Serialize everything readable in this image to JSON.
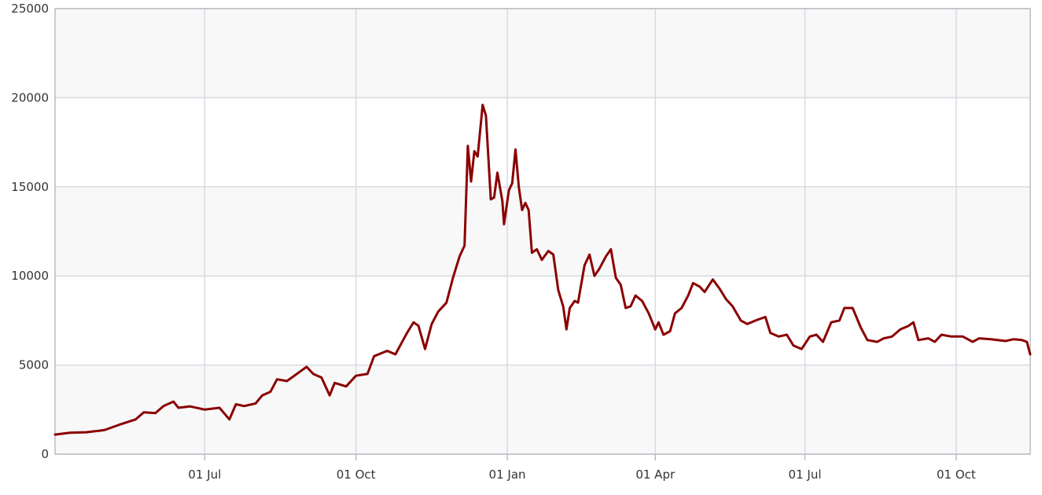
{
  "chart_data": {
    "type": "line",
    "title": "",
    "xlabel": "",
    "ylabel": "",
    "x_axis_type": "datetime",
    "x_range": [
      "2017-04-01",
      "2018-11-15"
    ],
    "ylim": [
      0,
      25000
    ],
    "grid": true,
    "legend": "none",
    "y_ticks": [
      0,
      5000,
      10000,
      15000,
      20000,
      25000
    ],
    "x_ticks": [
      {
        "date": "2017-07-01",
        "label": "01 Jul"
      },
      {
        "date": "2017-10-01",
        "label": "01 Oct"
      },
      {
        "date": "2018-01-01",
        "label": "01 Jan"
      },
      {
        "date": "2018-04-01",
        "label": "01 Apr"
      },
      {
        "date": "2018-07-01",
        "label": "01 Jul"
      },
      {
        "date": "2018-10-01",
        "label": "01 Oct"
      }
    ],
    "colors": {
      "line": "#8b0000",
      "band_light": "#ffffff",
      "band_dark": "#f8f8f9",
      "grid": "#d7dbe0",
      "axis": "#b8bdc4"
    },
    "series": [
      {
        "points": [
          [
            "2017-04-01",
            1100
          ],
          [
            "2017-04-10",
            1200
          ],
          [
            "2017-04-20",
            1230
          ],
          [
            "2017-05-01",
            1350
          ],
          [
            "2017-05-10",
            1650
          ],
          [
            "2017-05-20",
            1950
          ],
          [
            "2017-05-25",
            2350
          ],
          [
            "2017-06-01",
            2300
          ],
          [
            "2017-06-06",
            2700
          ],
          [
            "2017-06-12",
            2950
          ],
          [
            "2017-06-15",
            2600
          ],
          [
            "2017-06-22",
            2680
          ],
          [
            "2017-07-01",
            2500
          ],
          [
            "2017-07-10",
            2600
          ],
          [
            "2017-07-16",
            1950
          ],
          [
            "2017-07-20",
            2800
          ],
          [
            "2017-07-25",
            2700
          ],
          [
            "2017-08-01",
            2850
          ],
          [
            "2017-08-05",
            3300
          ],
          [
            "2017-08-10",
            3500
          ],
          [
            "2017-08-14",
            4200
          ],
          [
            "2017-08-20",
            4100
          ],
          [
            "2017-09-01",
            4900
          ],
          [
            "2017-09-05",
            4500
          ],
          [
            "2017-09-10",
            4300
          ],
          [
            "2017-09-15",
            3300
          ],
          [
            "2017-09-18",
            4000
          ],
          [
            "2017-09-25",
            3800
          ],
          [
            "2017-10-01",
            4400
          ],
          [
            "2017-10-08",
            4500
          ],
          [
            "2017-10-12",
            5500
          ],
          [
            "2017-10-20",
            5800
          ],
          [
            "2017-10-25",
            5600
          ],
          [
            "2017-11-01",
            6800
          ],
          [
            "2017-11-05",
            7400
          ],
          [
            "2017-11-08",
            7200
          ],
          [
            "2017-11-12",
            5900
          ],
          [
            "2017-11-16",
            7300
          ],
          [
            "2017-11-20",
            8000
          ],
          [
            "2017-11-25",
            8500
          ],
          [
            "2017-11-29",
            9900
          ],
          [
            "2017-12-03",
            11100
          ],
          [
            "2017-12-06",
            11700
          ],
          [
            "2017-12-08",
            17300
          ],
          [
            "2017-12-10",
            15300
          ],
          [
            "2017-12-12",
            17000
          ],
          [
            "2017-12-14",
            16700
          ],
          [
            "2017-12-17",
            19600
          ],
          [
            "2017-12-19",
            19000
          ],
          [
            "2017-12-22",
            14300
          ],
          [
            "2017-12-24",
            14400
          ],
          [
            "2017-12-26",
            15800
          ],
          [
            "2017-12-29",
            14200
          ],
          [
            "2017-12-30",
            12900
          ],
          [
            "2018-01-02",
            14800
          ],
          [
            "2018-01-04",
            15200
          ],
          [
            "2018-01-06",
            17100
          ],
          [
            "2018-01-08",
            15000
          ],
          [
            "2018-01-10",
            13700
          ],
          [
            "2018-01-12",
            14100
          ],
          [
            "2018-01-14",
            13700
          ],
          [
            "2018-01-16",
            11300
          ],
          [
            "2018-01-19",
            11500
          ],
          [
            "2018-01-22",
            10900
          ],
          [
            "2018-01-26",
            11400
          ],
          [
            "2018-01-29",
            11200
          ],
          [
            "2018-02-01",
            9200
          ],
          [
            "2018-02-04",
            8300
          ],
          [
            "2018-02-06",
            7000
          ],
          [
            "2018-02-08",
            8200
          ],
          [
            "2018-02-11",
            8600
          ],
          [
            "2018-02-13",
            8500
          ],
          [
            "2018-02-17",
            10600
          ],
          [
            "2018-02-20",
            11200
          ],
          [
            "2018-02-23",
            10000
          ],
          [
            "2018-02-26",
            10400
          ],
          [
            "2018-03-02",
            11100
          ],
          [
            "2018-03-05",
            11500
          ],
          [
            "2018-03-08",
            9900
          ],
          [
            "2018-03-11",
            9500
          ],
          [
            "2018-03-14",
            8200
          ],
          [
            "2018-03-17",
            8300
          ],
          [
            "2018-03-20",
            8900
          ],
          [
            "2018-03-24",
            8600
          ],
          [
            "2018-03-28",
            7900
          ],
          [
            "2018-04-01",
            7000
          ],
          [
            "2018-04-03",
            7400
          ],
          [
            "2018-04-06",
            6700
          ],
          [
            "2018-04-10",
            6900
          ],
          [
            "2018-04-13",
            7900
          ],
          [
            "2018-04-17",
            8200
          ],
          [
            "2018-04-21",
            8900
          ],
          [
            "2018-04-24",
            9600
          ],
          [
            "2018-04-28",
            9400
          ],
          [
            "2018-05-01",
            9100
          ],
          [
            "2018-05-06",
            9800
          ],
          [
            "2018-05-10",
            9300
          ],
          [
            "2018-05-14",
            8700
          ],
          [
            "2018-05-18",
            8300
          ],
          [
            "2018-05-23",
            7500
          ],
          [
            "2018-05-27",
            7300
          ],
          [
            "2018-06-01",
            7500
          ],
          [
            "2018-06-07",
            7700
          ],
          [
            "2018-06-10",
            6800
          ],
          [
            "2018-06-15",
            6600
          ],
          [
            "2018-06-20",
            6700
          ],
          [
            "2018-06-24",
            6100
          ],
          [
            "2018-06-29",
            5900
          ],
          [
            "2018-07-04",
            6600
          ],
          [
            "2018-07-08",
            6700
          ],
          [
            "2018-07-12",
            6300
          ],
          [
            "2018-07-17",
            7400
          ],
          [
            "2018-07-22",
            7500
          ],
          [
            "2018-07-25",
            8200
          ],
          [
            "2018-07-30",
            8200
          ],
          [
            "2018-08-04",
            7100
          ],
          [
            "2018-08-08",
            6400
          ],
          [
            "2018-08-14",
            6300
          ],
          [
            "2018-08-18",
            6500
          ],
          [
            "2018-08-23",
            6600
          ],
          [
            "2018-08-28",
            7000
          ],
          [
            "2018-09-02",
            7200
          ],
          [
            "2018-09-05",
            7400
          ],
          [
            "2018-09-08",
            6400
          ],
          [
            "2018-09-14",
            6500
          ],
          [
            "2018-09-18",
            6300
          ],
          [
            "2018-09-22",
            6700
          ],
          [
            "2018-09-28",
            6600
          ],
          [
            "2018-10-05",
            6600
          ],
          [
            "2018-10-11",
            6300
          ],
          [
            "2018-10-15",
            6500
          ],
          [
            "2018-10-22",
            6450
          ],
          [
            "2018-10-31",
            6350
          ],
          [
            "2018-11-05",
            6450
          ],
          [
            "2018-11-10",
            6400
          ],
          [
            "2018-11-13",
            6300
          ],
          [
            "2018-11-15",
            5600
          ]
        ]
      }
    ]
  }
}
